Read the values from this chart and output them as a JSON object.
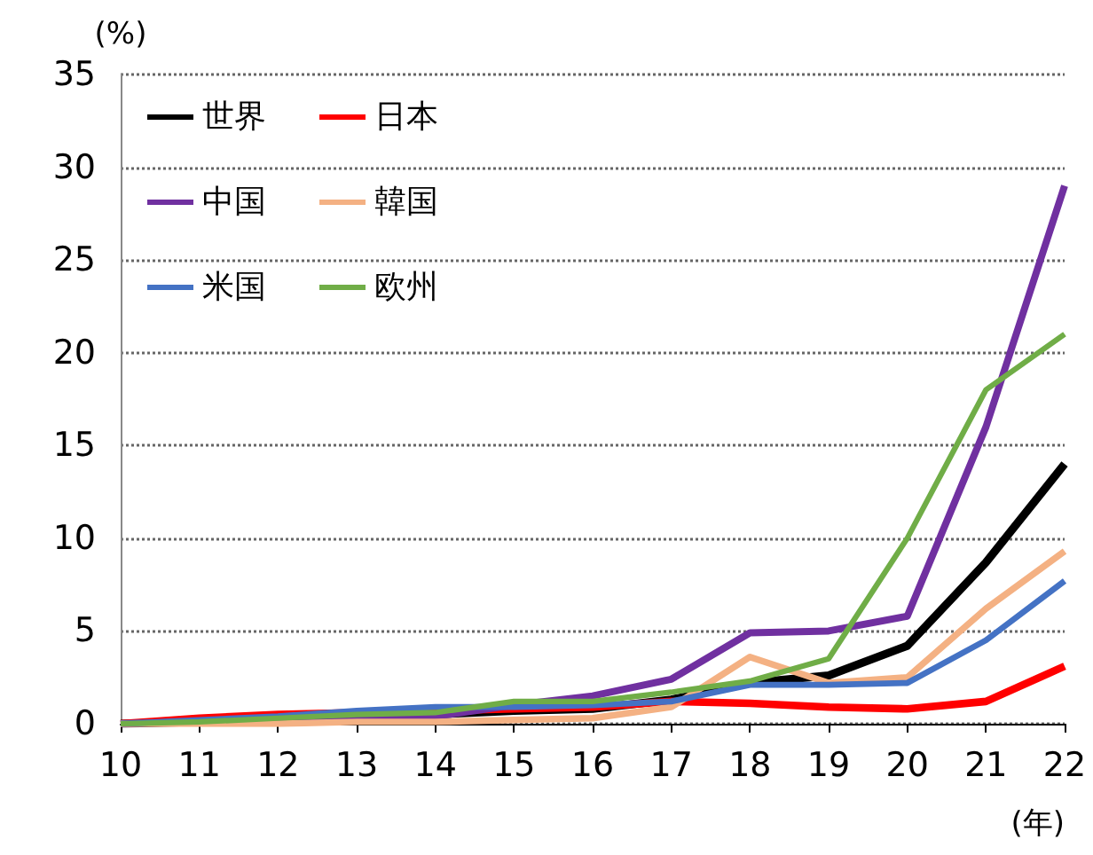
{
  "chart_data": {
    "type": "line",
    "ylabel": "(%)",
    "xlabel": "(年)",
    "x": [
      10,
      11,
      12,
      13,
      14,
      15,
      16,
      17,
      18,
      19,
      20,
      21,
      22
    ],
    "series": [
      {
        "name": "世界",
        "color": "#000000",
        "values": [
          0,
          0.1,
          0.2,
          0.4,
          0.5,
          0.7,
          0.8,
          1.3,
          2.2,
          2.6,
          4.2,
          8.7,
          14
        ]
      },
      {
        "name": "日本",
        "color": "#ff0000",
        "values": [
          0,
          0.3,
          0.5,
          0.6,
          0.7,
          0.8,
          0.9,
          1.2,
          1.1,
          0.9,
          0.8,
          1.2,
          3.1
        ]
      },
      {
        "name": "中国",
        "color": "#7030a0",
        "values": [
          0,
          0.1,
          0.2,
          0.3,
          0.4,
          1.0,
          1.5,
          2.4,
          4.9,
          5.0,
          5.8,
          16,
          29
        ]
      },
      {
        "name": "韓国",
        "color": "#f4b183",
        "values": [
          0,
          0,
          0,
          0.1,
          0.1,
          0.2,
          0.3,
          0.9,
          3.6,
          2.2,
          2.5,
          6.2,
          9.3
        ]
      },
      {
        "name": "米国",
        "color": "#4472c4",
        "values": [
          0,
          0.2,
          0.4,
          0.7,
          0.9,
          0.9,
          1.0,
          1.2,
          2.1,
          2.1,
          2.2,
          4.5,
          7.7
        ]
      },
      {
        "name": "欧州",
        "color": "#70ad47",
        "values": [
          0,
          0.1,
          0.3,
          0.5,
          0.6,
          1.2,
          1.2,
          1.7,
          2.3,
          3.5,
          10,
          18,
          21
        ]
      }
    ],
    "xlim": [
      10,
      22
    ],
    "xticks": [
      10,
      11,
      12,
      13,
      14,
      15,
      16,
      17,
      18,
      19,
      20,
      21,
      22
    ],
    "ylim": [
      0,
      35
    ],
    "yticks": [
      0,
      5,
      10,
      15,
      20,
      25,
      30,
      35
    ],
    "grid": "y",
    "legend": "top left",
    "marker": "none",
    "line_style": "solid"
  }
}
